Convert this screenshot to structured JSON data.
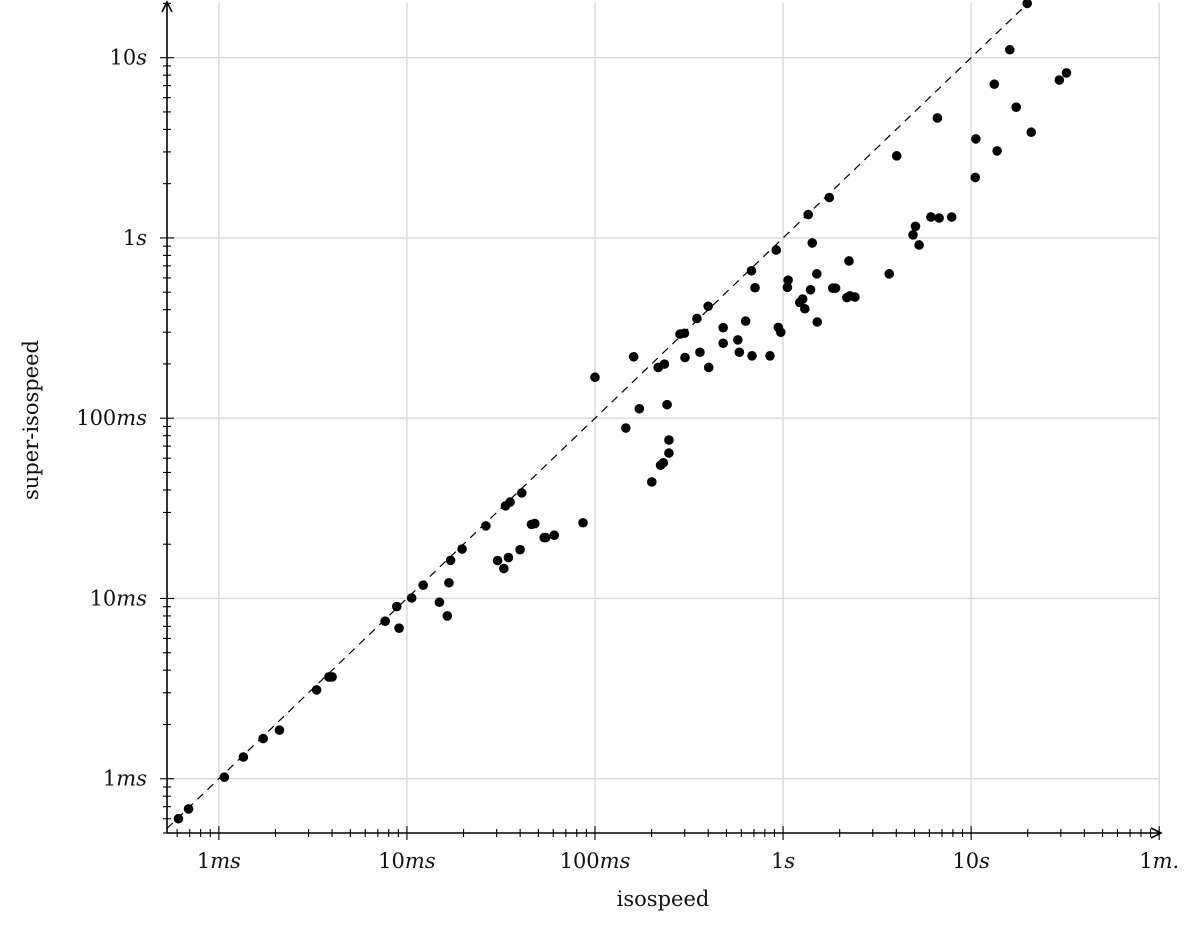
{
  "chart_data": {
    "type": "scatter",
    "title": "",
    "xlabel": "isospeed",
    "ylabel": "super-isospeed",
    "x_scale": "log",
    "y_scale": "log",
    "unit": "seconds",
    "xlim": [
      0.00053,
      101
    ],
    "ylim": [
      0.0005,
      20.1
    ],
    "grid": true,
    "legend": "none",
    "x_ticks": [
      {
        "value": 0.001,
        "label": "1ms"
      },
      {
        "value": 0.01,
        "label": "10ms"
      },
      {
        "value": 0.1,
        "label": "100ms"
      },
      {
        "value": 1,
        "label": "1s"
      },
      {
        "value": 10,
        "label": "10s"
      },
      {
        "value": 100,
        "label": "1m."
      }
    ],
    "y_ticks": [
      {
        "value": 0.001,
        "label": "1ms"
      },
      {
        "value": 0.01,
        "label": "10ms"
      },
      {
        "value": 0.1,
        "label": "100ms"
      },
      {
        "value": 1,
        "label": "1s"
      },
      {
        "value": 10,
        "label": "10s"
      }
    ],
    "reference_line": "y = x",
    "points": [
      [
        0.00061,
        0.0006
      ],
      [
        0.00069,
        0.00068
      ],
      [
        0.00107,
        0.00102
      ],
      [
        0.00135,
        0.00132
      ],
      [
        0.00172,
        0.00167
      ],
      [
        0.0021,
        0.00186
      ],
      [
        0.00331,
        0.00311
      ],
      [
        0.00385,
        0.00367
      ],
      [
        0.004,
        0.00367
      ],
      [
        0.00766,
        0.00748
      ],
      [
        0.00883,
        0.00902
      ],
      [
        0.00909,
        0.00684
      ],
      [
        0.0106,
        0.01006
      ],
      [
        0.0122,
        0.01185
      ],
      [
        0.01489,
        0.00953
      ],
      [
        0.0164,
        0.008
      ],
      [
        0.01673,
        0.01222
      ],
      [
        0.01707,
        0.01628
      ],
      [
        0.01965,
        0.0188
      ],
      [
        0.0263,
        0.02527
      ],
      [
        0.03035,
        0.01624
      ],
      [
        0.03276,
        0.01466
      ],
      [
        0.03343,
        0.03263
      ],
      [
        0.03465,
        0.01686
      ],
      [
        0.03536,
        0.03424
      ],
      [
        0.03998,
        0.01865
      ],
      [
        0.04081,
        0.03853
      ],
      [
        0.04596,
        0.02576
      ],
      [
        0.04786,
        0.02603
      ],
      [
        0.05371,
        0.02176
      ],
      [
        0.0547,
        0.02176
      ],
      [
        0.06076,
        0.02244
      ],
      [
        0.08636,
        0.0263
      ],
      [
        0.1,
        0.1688
      ],
      [
        0.1459,
        0.0882
      ],
      [
        0.1605,
        0.2191
      ],
      [
        0.1721,
        0.1128
      ],
      [
        0.2005,
        0.0443
      ],
      [
        0.2168,
        0.1912
      ],
      [
        0.2232,
        0.0548
      ],
      [
        0.2311,
        0.0566
      ],
      [
        0.234,
        0.1995
      ],
      [
        0.2418,
        0.1189
      ],
      [
        0.2472,
        0.0757
      ],
      [
        0.2472,
        0.0641
      ],
      [
        0.2833,
        0.2928
      ],
      [
        0.299,
        0.2959
      ],
      [
        0.3011,
        0.217
      ],
      [
        0.3484,
        0.3574
      ],
      [
        0.3614,
        0.2322
      ],
      [
        0.3998,
        0.4177
      ],
      [
        0.4024,
        0.1912
      ],
      [
        0.4804,
        0.3177
      ],
      [
        0.4804,
        0.2604
      ],
      [
        0.5747,
        0.2719
      ],
      [
        0.5857,
        0.2322
      ],
      [
        0.6323,
        0.3457
      ],
      [
        0.6795,
        0.6572
      ],
      [
        0.6839,
        0.2219
      ],
      [
        0.7095,
        0.5293
      ],
      [
        0.8524,
        0.2219
      ],
      [
        0.92,
        0.8574
      ],
      [
        0.943,
        0.3189
      ],
      [
        0.9728,
        0.2996
      ],
      [
        1.055,
        0.532
      ],
      [
        1.0641,
        0.5834
      ],
      [
        1.2271,
        0.439
      ],
      [
        1.2709,
        0.458
      ],
      [
        1.3054,
        0.4047
      ],
      [
        1.3608,
        1.3474
      ],
      [
        1.4,
        0.5156
      ],
      [
        1.4296,
        0.9382
      ],
      [
        1.5116,
        0.6321
      ],
      [
        1.5195,
        0.3417
      ],
      [
        1.7622,
        1.6751
      ],
      [
        1.838,
        0.5265
      ],
      [
        1.9019,
        0.5265
      ],
      [
        2.1853,
        0.4666
      ],
      [
        2.2419,
        0.7451
      ],
      [
        2.266,
        0.4772
      ],
      [
        2.41,
        0.4701
      ],
      [
        3.67,
        0.6321
      ],
      [
        4.02,
        2.853
      ],
      [
        4.91,
        1.04
      ],
      [
        5.06,
        1.16
      ],
      [
        5.29,
        0.914
      ],
      [
        6.11,
        1.307
      ],
      [
        6.62,
        4.63
      ],
      [
        6.76,
        1.29
      ],
      [
        7.88,
        1.306
      ],
      [
        10.52,
        2.165
      ],
      [
        10.6,
        3.542
      ],
      [
        13.28,
        7.122
      ],
      [
        13.75,
        3.039
      ],
      [
        16.06,
        11.064
      ],
      [
        17.37,
        5.312
      ],
      [
        19.87,
        20.0
      ],
      [
        20.88,
        3.858
      ],
      [
        29.45,
        7.515
      ],
      [
        32.14,
        8.228
      ]
    ]
  }
}
